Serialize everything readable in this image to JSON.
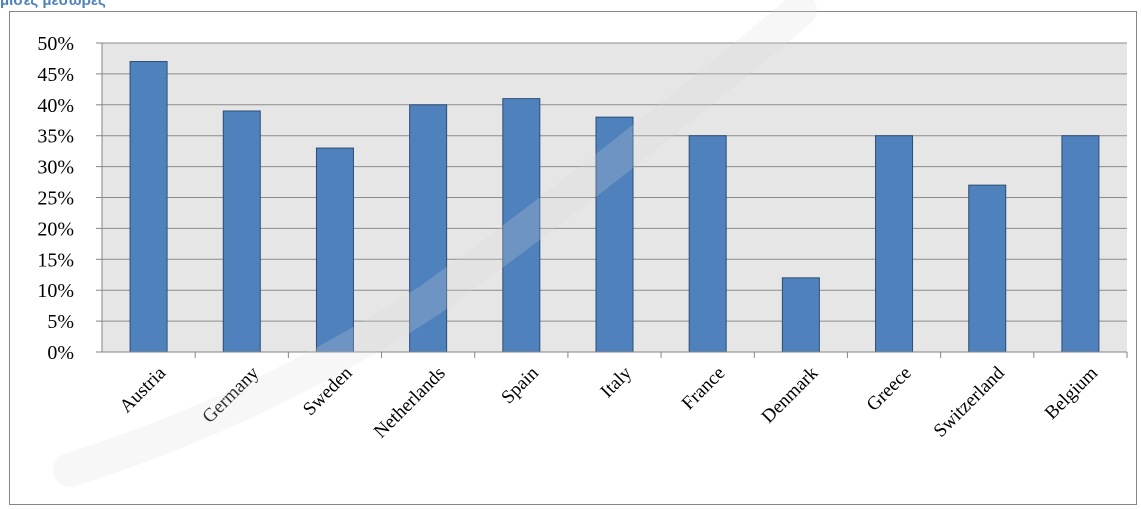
{
  "heading": "μισές μεσωρες",
  "colors": {
    "bar": "#4f81bd",
    "bar_border": "#2c4d75",
    "plot_bg": "#e6e6e6",
    "grid": "#8c8c8c"
  },
  "chart_data": {
    "type": "bar",
    "title": "",
    "xlabel": "",
    "ylabel": "",
    "categories": [
      "Austria",
      "Germany",
      "Sweden",
      "Netherlands",
      "Spain",
      "Italy",
      "France",
      "Denmark",
      "Greece",
      "Switzerland",
      "Belgium"
    ],
    "values": [
      47,
      39,
      33,
      40,
      41,
      38,
      35,
      12,
      35,
      27,
      35
    ],
    "unit": "%",
    "ylim": [
      0,
      50
    ],
    "yticks": [
      "0%",
      "5%",
      "10%",
      "15%",
      "20%",
      "25%",
      "30%",
      "35%",
      "40%",
      "45%",
      "50%"
    ],
    "grid": true,
    "legend": "none"
  }
}
